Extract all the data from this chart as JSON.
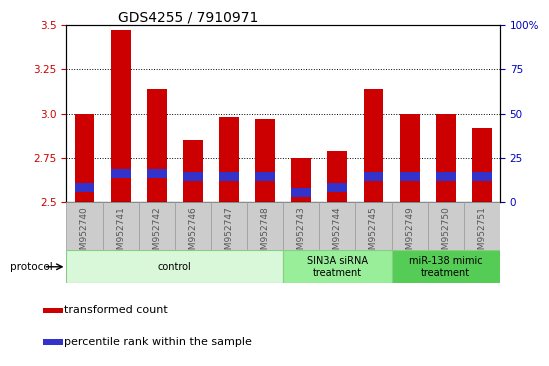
{
  "title": "GDS4255 / 7910971",
  "samples": [
    "GSM952740",
    "GSM952741",
    "GSM952742",
    "GSM952746",
    "GSM952747",
    "GSM952748",
    "GSM952743",
    "GSM952744",
    "GSM952745",
    "GSM952749",
    "GSM952750",
    "GSM952751"
  ],
  "red_values": [
    3.0,
    3.47,
    3.14,
    2.85,
    2.98,
    2.97,
    2.75,
    2.79,
    3.14,
    3.0,
    3.0,
    2.92
  ],
  "blue_values": [
    0.05,
    0.05,
    0.05,
    0.05,
    0.05,
    0.05,
    0.05,
    0.05,
    0.05,
    0.05,
    0.05,
    0.05
  ],
  "blue_positions": [
    2.558,
    2.638,
    2.638,
    2.618,
    2.618,
    2.618,
    2.528,
    2.555,
    2.618,
    2.618,
    2.618,
    2.618
  ],
  "ymin": 2.5,
  "ymax": 3.5,
  "yticks_left": [
    2.5,
    2.75,
    3.0,
    3.25,
    3.5
  ],
  "yticks_right": [
    0,
    25,
    50,
    75,
    100
  ],
  "bar_color": "#cc0000",
  "blue_color": "#3333cc",
  "bar_width": 0.55,
  "protocol_groups": [
    {
      "label": "control",
      "start": 0,
      "end": 6,
      "color": "#d9f7d9",
      "border": "#88cc88"
    },
    {
      "label": "SIN3A siRNA\ntreatment",
      "start": 6,
      "end": 9,
      "color": "#99ee99",
      "border": "#88cc88"
    },
    {
      "label": "miR-138 mimic\ntreatment",
      "start": 9,
      "end": 12,
      "color": "#55cc55",
      "border": "#88cc88"
    }
  ],
  "protocol_label": "protocol",
  "legend_items": [
    {
      "label": "transformed count",
      "color": "#cc0000"
    },
    {
      "label": "percentile rank within the sample",
      "color": "#3333cc"
    }
  ],
  "tick_label_color": "#555555",
  "left_axis_color": "#cc0000",
  "right_axis_color": "#0000bb",
  "title_fontsize": 10,
  "tick_fontsize": 7.5,
  "legend_fontsize": 8,
  "sample_label_fontsize": 6.5
}
